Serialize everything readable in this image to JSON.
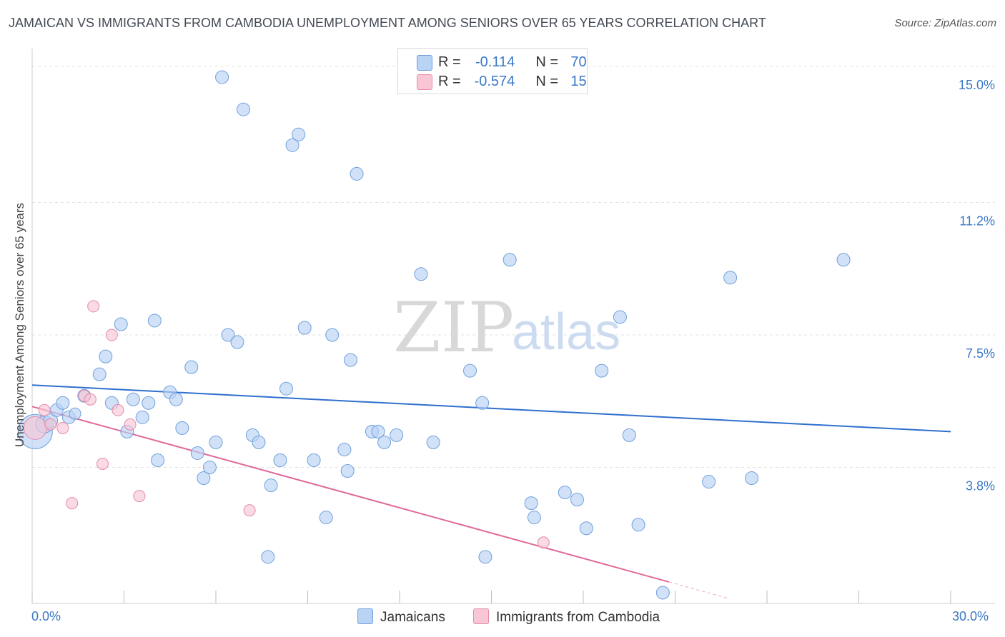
{
  "title": "JAMAICAN VS IMMIGRANTS FROM CAMBODIA UNEMPLOYMENT AMONG SENIORS OVER 65 YEARS CORRELATION CHART",
  "source": "Source: ZipAtlas.com",
  "watermark": {
    "zip": "ZIP",
    "atlas": "atlas"
  },
  "legend_top": {
    "rows": [
      {
        "r_label": "R =",
        "r_value": "-0.114",
        "n_label": "N =",
        "n_value": "70"
      },
      {
        "r_label": "R =",
        "r_value": "-0.574",
        "n_label": "N =",
        "n_value": "15"
      }
    ]
  },
  "legend_bottom": [
    "Jamaicans",
    "Immigrants from Cambodia"
  ],
  "x_axis": {
    "min_label": "0.0%",
    "max_label": "30.0%"
  },
  "colors": {
    "jamaican_fill": "#b9d3f5",
    "jamaican_stroke": "#6f9fdc",
    "jamaican_line": "#2f6fce",
    "cambodia_fill": "#f8c6d5",
    "cambodia_stroke": "#e58aa6",
    "cambodia_line": "#e0699a",
    "grid": "#e2e2e2",
    "axis_text": "#3b78c7"
  },
  "chart_data": {
    "type": "scatter",
    "xlabel": "",
    "ylabel": "Unemployment Among Seniors over 65 years",
    "xlim": [
      0,
      30
    ],
    "ylim": [
      0,
      15.3
    ],
    "y_ticks": [
      {
        "value": 3.8,
        "label": "3.8%"
      },
      {
        "value": 7.5,
        "label": "7.5%"
      },
      {
        "value": 11.2,
        "label": "11.2%"
      },
      {
        "value": 15.0,
        "label": "15.0%"
      }
    ],
    "x_ticks": [
      0,
      3,
      6,
      9,
      12,
      15,
      18,
      21,
      24,
      27,
      30
    ],
    "series": [
      {
        "name": "Jamaicans",
        "r": -0.114,
        "n": 70,
        "trend": {
          "x0": 0,
          "y0": 6.1,
          "x1": 30,
          "y1": 4.8
        },
        "points": [
          [
            0.1,
            4.8,
            24
          ],
          [
            0.4,
            5.0,
            12
          ],
          [
            0.6,
            5.1,
            10
          ],
          [
            0.8,
            5.4,
            9
          ],
          [
            1.0,
            5.6,
            9
          ],
          [
            1.2,
            5.2,
            9
          ],
          [
            1.4,
            5.3,
            8
          ],
          [
            1.7,
            5.8,
            9
          ],
          [
            2.2,
            6.4,
            9
          ],
          [
            2.4,
            6.9,
            9
          ],
          [
            2.6,
            5.6,
            9
          ],
          [
            2.9,
            7.8,
            9
          ],
          [
            3.1,
            4.8,
            9
          ],
          [
            3.3,
            5.7,
            9
          ],
          [
            3.6,
            5.2,
            9
          ],
          [
            3.8,
            5.6,
            9
          ],
          [
            4.0,
            7.9,
            9
          ],
          [
            4.1,
            4.0,
            9
          ],
          [
            4.5,
            5.9,
            9
          ],
          [
            4.7,
            5.7,
            9
          ],
          [
            4.9,
            4.9,
            9
          ],
          [
            5.2,
            6.6,
            9
          ],
          [
            5.4,
            4.2,
            9
          ],
          [
            5.6,
            3.5,
            9
          ],
          [
            5.8,
            3.8,
            9
          ],
          [
            6.0,
            4.5,
            9
          ],
          [
            6.2,
            14.7,
            9
          ],
          [
            6.4,
            7.5,
            9
          ],
          [
            6.7,
            7.3,
            9
          ],
          [
            6.9,
            13.8,
            9
          ],
          [
            7.2,
            4.7,
            9
          ],
          [
            7.4,
            4.5,
            9
          ],
          [
            7.7,
            1.3,
            9
          ],
          [
            7.8,
            3.3,
            9
          ],
          [
            8.1,
            4.0,
            9
          ],
          [
            8.3,
            6.0,
            9
          ],
          [
            8.5,
            12.8,
            9
          ],
          [
            8.7,
            13.1,
            9
          ],
          [
            8.9,
            7.7,
            9
          ],
          [
            9.2,
            4.0,
            9
          ],
          [
            9.6,
            2.4,
            9
          ],
          [
            9.8,
            7.5,
            9
          ],
          [
            10.2,
            4.3,
            9
          ],
          [
            10.3,
            3.7,
            9
          ],
          [
            10.4,
            6.8,
            9
          ],
          [
            10.6,
            12.0,
            9
          ],
          [
            11.1,
            4.8,
            9
          ],
          [
            11.3,
            4.8,
            9
          ],
          [
            11.5,
            4.5,
            9
          ],
          [
            11.9,
            4.7,
            9
          ],
          [
            12.7,
            9.2,
            9
          ],
          [
            13.1,
            4.5,
            9
          ],
          [
            14.3,
            6.5,
            9
          ],
          [
            14.7,
            5.6,
            9
          ],
          [
            14.8,
            1.3,
            9
          ],
          [
            15.6,
            9.6,
            9
          ],
          [
            16.3,
            2.8,
            9
          ],
          [
            16.4,
            2.4,
            9
          ],
          [
            17.4,
            3.1,
            9
          ],
          [
            17.8,
            2.9,
            9
          ],
          [
            18.1,
            2.1,
            9
          ],
          [
            18.6,
            6.5,
            9
          ],
          [
            19.2,
            8.0,
            9
          ],
          [
            19.5,
            4.7,
            9
          ],
          [
            19.8,
            2.2,
            9
          ],
          [
            20.6,
            0.3,
            9
          ],
          [
            22.1,
            3.4,
            9
          ],
          [
            22.8,
            9.1,
            9
          ],
          [
            23.5,
            3.5,
            9
          ],
          [
            26.5,
            9.6,
            9
          ]
        ]
      },
      {
        "name": "Immigrants from Cambodia",
        "r": -0.574,
        "n": 15,
        "trend": {
          "x0": 0,
          "y0": 5.5,
          "x1": 20.8,
          "y1": 0.6,
          "dash_x1": 22.7,
          "dash_y1": 0.15
        },
        "points": [
          [
            0.1,
            4.9,
            16
          ],
          [
            0.4,
            5.4,
            8
          ],
          [
            0.6,
            5.0,
            8
          ],
          [
            1.0,
            4.9,
            8
          ],
          [
            1.3,
            2.8,
            8
          ],
          [
            1.7,
            5.8,
            8
          ],
          [
            1.9,
            5.7,
            8
          ],
          [
            2.0,
            8.3,
            8
          ],
          [
            2.3,
            3.9,
            8
          ],
          [
            2.6,
            7.5,
            8
          ],
          [
            2.8,
            5.4,
            8
          ],
          [
            3.2,
            5.0,
            8
          ],
          [
            3.5,
            3.0,
            8
          ],
          [
            7.1,
            2.6,
            8
          ],
          [
            16.7,
            1.7,
            8
          ]
        ]
      }
    ]
  }
}
